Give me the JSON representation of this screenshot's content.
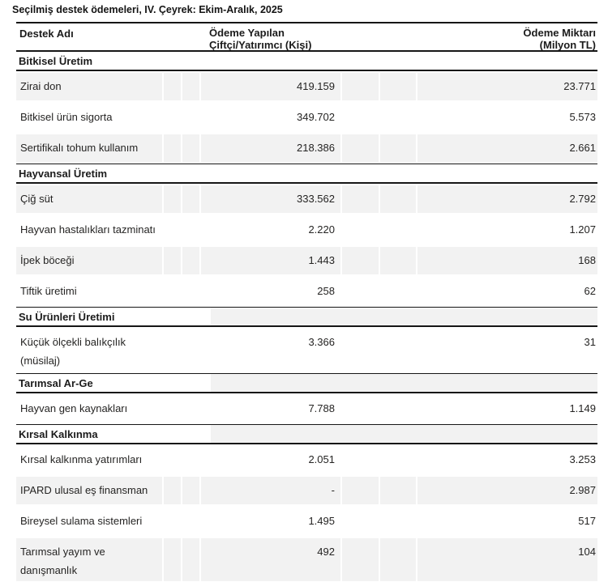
{
  "title": "Seçilmiş destek ödemeleri, IV. Çeyrek: Ekim-Aralık, 2025",
  "colors": {
    "stripe": "#f2f2f2",
    "text": "#252423",
    "border": "#161616"
  },
  "table": {
    "columns": {
      "col1": "Destek Adı",
      "col2_line1": "Ödeme Yapılan",
      "col2_line2": "Çiftçi/Yatırımcı (Kişi)",
      "col3_line1": "Ödeme Miktarı",
      "col3_line2": "(Milyon TL)"
    },
    "sections": [
      {
        "name": "Bitkisel Üretim",
        "shaded": false,
        "rows": [
          {
            "label": "Zirai don",
            "kisi": "419.159",
            "miktar": "23.771",
            "shaded": true
          },
          {
            "label": "Bitkisel ürün sigorta",
            "kisi": "349.702",
            "miktar": "5.573",
            "shaded": false
          },
          {
            "label": "Sertifikalı tohum kullanım",
            "kisi": "218.386",
            "miktar": "2.661",
            "shaded": true
          }
        ]
      },
      {
        "name": "Hayvansal Üretim",
        "shaded": false,
        "rows": [
          {
            "label": "Çiğ süt",
            "kisi": "333.562",
            "miktar": "2.792",
            "shaded": true
          },
          {
            "label": "Hayvan hastalıkları tazminatı",
            "kisi": "2.220",
            "miktar": "1.207",
            "shaded": false
          },
          {
            "label": "İpek böceği",
            "kisi": "1.443",
            "miktar": "168",
            "shaded": true
          },
          {
            "label": "Tiftik üretimi",
            "kisi": "258",
            "miktar": "62",
            "shaded": false
          }
        ]
      },
      {
        "name": "Su Ürünleri Üretimi",
        "shaded": true,
        "rows": [
          {
            "label": "Küçük ölçekli balıkçılık",
            "label2": "(müsilaj)",
            "kisi": "3.366",
            "miktar": "31",
            "shaded": false
          }
        ]
      },
      {
        "name": "Tarımsal Ar-Ge",
        "shaded": true,
        "rows": [
          {
            "label": "Hayvan gen kaynakları",
            "kisi": "7.788",
            "miktar": "1.149",
            "shaded": false
          }
        ]
      },
      {
        "name": "Kırsal Kalkınma",
        "shaded": true,
        "rows": [
          {
            "label": "Kırsal kalkınma yatırımları",
            "kisi": "2.051",
            "miktar": "3.253",
            "shaded": false
          },
          {
            "label": "IPARD ulusal eş finansman",
            "kisi": "-",
            "miktar": "2.987",
            "shaded": true
          },
          {
            "label": "Bireysel sulama sistemleri",
            "kisi": "1.495",
            "miktar": "517",
            "shaded": false
          },
          {
            "label": "Tarımsal yayım ve",
            "label2": "danışmanlık",
            "kisi": "492",
            "miktar": "104",
            "shaded": true
          }
        ]
      }
    ]
  }
}
